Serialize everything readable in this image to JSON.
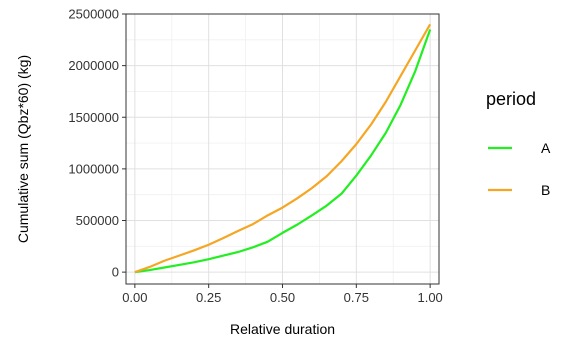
{
  "chart_data": {
    "type": "line",
    "xlabel": "Relative duration",
    "ylabel": "Cumulative sum (Qbz*60) (kg)",
    "xlim": [
      -0.03,
      1.03
    ],
    "ylim": [
      -115000,
      2500000
    ],
    "x_ticks": [
      0.0,
      0.25,
      0.5,
      0.75,
      1.0
    ],
    "x_tick_labels": [
      "0.00",
      "0.25",
      "0.50",
      "0.75",
      "1.00"
    ],
    "y_ticks": [
      0,
      500000,
      1000000,
      1500000,
      2000000,
      2500000
    ],
    "y_tick_labels": [
      "0",
      "500000",
      "1000000",
      "1500000",
      "2000000",
      "2500000"
    ],
    "grid": true,
    "legend": {
      "title": "period",
      "position": "right"
    },
    "series": [
      {
        "name": "A",
        "color": "#22EE22",
        "x": [
          0.0,
          0.05,
          0.1,
          0.15,
          0.2,
          0.25,
          0.3,
          0.35,
          0.4,
          0.45,
          0.5,
          0.55,
          0.6,
          0.65,
          0.7,
          0.75,
          0.8,
          0.85,
          0.9,
          0.95,
          1.0
        ],
        "y": [
          0,
          20000,
          45000,
          70000,
          95000,
          125000,
          160000,
          195000,
          240000,
          295000,
          380000,
          460000,
          550000,
          645000,
          760000,
          935000,
          1130000,
          1350000,
          1620000,
          1950000,
          2350000
        ]
      },
      {
        "name": "B",
        "color": "#F5A623",
        "x": [
          0.0,
          0.05,
          0.1,
          0.15,
          0.2,
          0.25,
          0.3,
          0.35,
          0.4,
          0.45,
          0.5,
          0.55,
          0.6,
          0.65,
          0.7,
          0.75,
          0.8,
          0.85,
          0.9,
          0.95,
          1.0
        ],
        "y": [
          0,
          50000,
          110000,
          160000,
          210000,
          265000,
          330000,
          400000,
          465000,
          550000,
          625000,
          715000,
          815000,
          930000,
          1075000,
          1240000,
          1430000,
          1650000,
          1900000,
          2150000,
          2400000
        ]
      }
    ]
  }
}
